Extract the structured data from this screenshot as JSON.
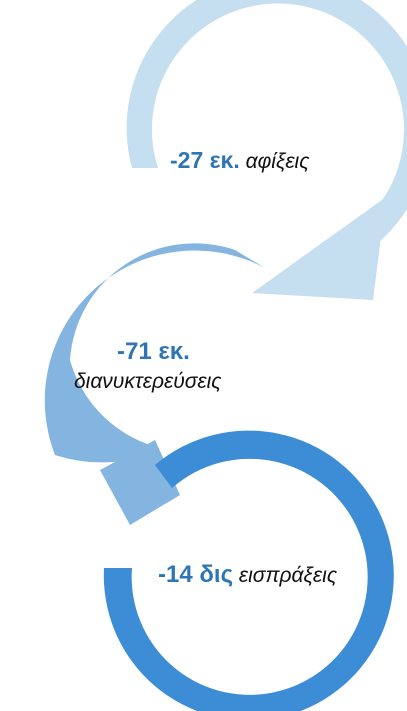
{
  "cycle": {
    "steps": [
      {
        "value": "-27 εκ.",
        "description": "αφίξεις",
        "color": "#c5def0"
      },
      {
        "value": "-71 εκ.",
        "description": "διανυκτερεύσεις",
        "color": "#84b5e0"
      },
      {
        "value": "-14 δις",
        "description": "εισπράξεις",
        "color": "#3d8dd6"
      }
    ]
  }
}
